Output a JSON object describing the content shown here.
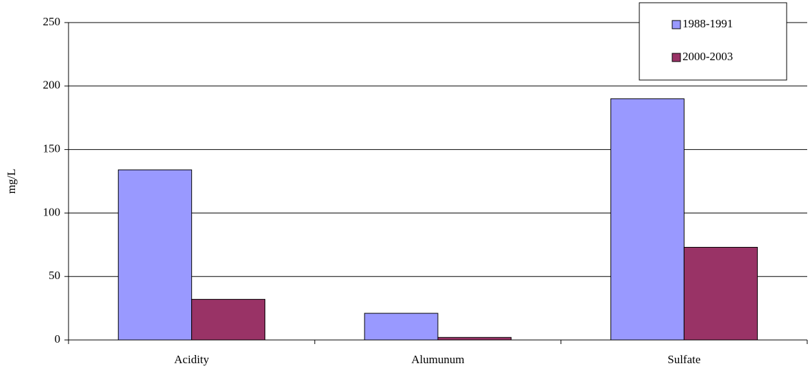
{
  "chart_data": {
    "type": "bar",
    "y_label": "mg/L",
    "categories": [
      "Acidity",
      "Alumunum",
      "Sulfate"
    ],
    "series": [
      {
        "name": "1988-1991",
        "color": "#9999ff",
        "values": [
          134,
          21,
          190
        ]
      },
      {
        "name": "2000-2003",
        "color": "#993366",
        "values": [
          32,
          2,
          73
        ]
      }
    ],
    "ylim": [
      0,
      250
    ],
    "yticks": [
      0,
      50,
      100,
      150,
      200,
      250
    ],
    "grid": true,
    "legend": "top-right"
  }
}
